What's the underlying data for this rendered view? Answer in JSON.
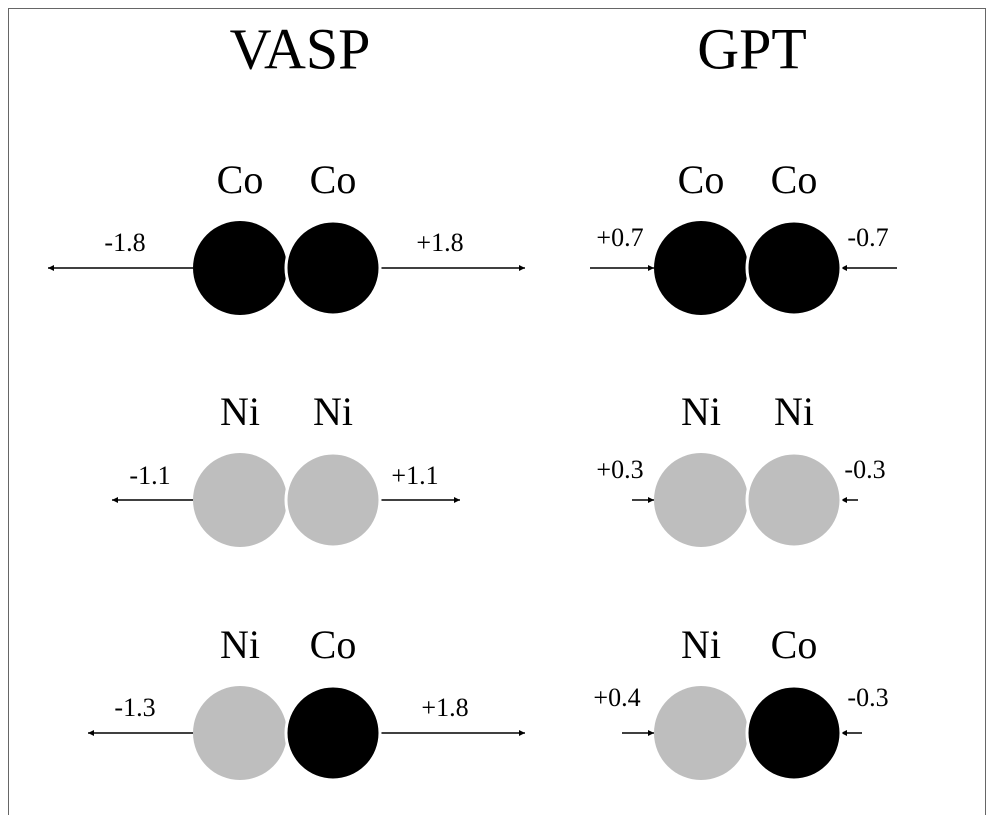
{
  "panels": [
    {
      "title": "VASP",
      "rows": [
        {
          "atoms": [
            "Co",
            "Co"
          ],
          "forces": [
            "-1.8",
            "+1.8"
          ]
        },
        {
          "atoms": [
            "Ni",
            "Ni"
          ],
          "forces": [
            "-1.1",
            "+1.1"
          ]
        },
        {
          "atoms": [
            "Ni",
            "Co"
          ],
          "forces": [
            "-1.3",
            "+1.8"
          ]
        }
      ]
    },
    {
      "title": "GPT",
      "rows": [
        {
          "atoms": [
            "Co",
            "Co"
          ],
          "forces": [
            "+0.7",
            "-0.7"
          ]
        },
        {
          "atoms": [
            "Ni",
            "Ni"
          ],
          "forces": [
            "+0.3",
            "-0.3"
          ]
        },
        {
          "atoms": [
            "Ni",
            "Co"
          ],
          "forces": [
            "+0.4",
            "-0.3"
          ]
        }
      ]
    }
  ]
}
